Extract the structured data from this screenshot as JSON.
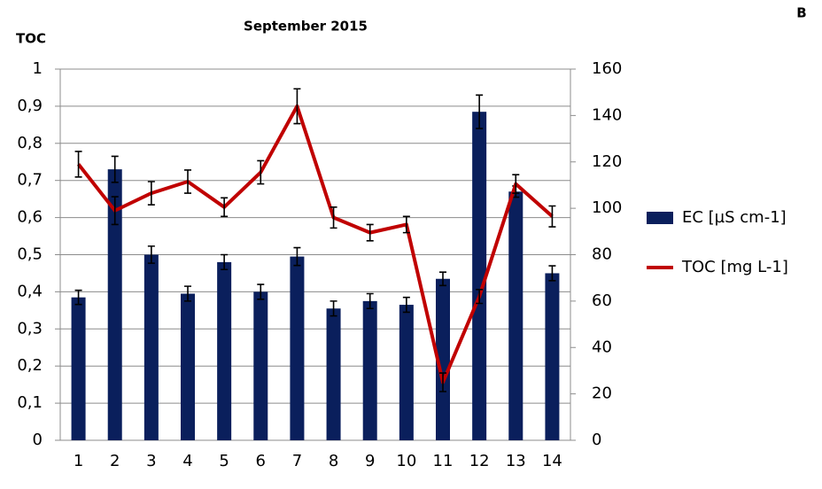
{
  "chart_data": {
    "type": "bar_line",
    "title": "September 2015",
    "panel_label": "B",
    "y_label": "TOC",
    "categories": [
      "1",
      "2",
      "3",
      "4",
      "5",
      "6",
      "7",
      "8",
      "9",
      "10",
      "11",
      "12",
      "13",
      "14"
    ],
    "series": [
      {
        "name": "EC [µS cm-1]",
        "type": "bar",
        "color": "#0a1f5c",
        "axis": "y",
        "values": [
          0.385,
          0.73,
          0.5,
          0.395,
          0.48,
          0.4,
          0.495,
          0.355,
          0.375,
          0.365,
          0.435,
          0.885,
          0.67,
          0.45
        ],
        "errors": [
          0.019,
          0.035,
          0.023,
          0.02,
          0.02,
          0.02,
          0.024,
          0.02,
          0.02,
          0.02,
          0.018,
          0.045,
          0.015,
          0.02
        ]
      },
      {
        "name": "TOC [mg L-1]",
        "type": "line",
        "color": "#c00000",
        "axis": "y2",
        "values": [
          119,
          99,
          106.5,
          111.5,
          100.5,
          115.5,
          144,
          96,
          89.5,
          93,
          25,
          62,
          110.5,
          96.5
        ],
        "errors": [
          5.5,
          6,
          5,
          5,
          4,
          5,
          7.5,
          4.5,
          3.5,
          3.5,
          4,
          3,
          4,
          4.5
        ]
      }
    ],
    "ylim": [
      0,
      1
    ],
    "yticks": [
      0,
      {
        "value": 0.1,
        "label": "0,1"
      },
      {
        "value": 0.2,
        "label": "0,2"
      },
      {
        "value": 0.3,
        "label": "0,3"
      },
      {
        "value": 0.4,
        "label": "0,4"
      },
      {
        "value": 0.5,
        "label": "0,5"
      },
      {
        "value": 0.6,
        "label": "0,6"
      },
      {
        "value": 0.7,
        "label": "0,7"
      },
      {
        "value": 0.8,
        "label": "0,8"
      },
      {
        "value": 0.9,
        "label": "0,9"
      },
      1
    ],
    "y2lim": [
      0,
      160
    ],
    "y2ticks": [
      0,
      20,
      40,
      60,
      80,
      100,
      120,
      140,
      160
    ],
    "grid": true,
    "legend": "right"
  }
}
